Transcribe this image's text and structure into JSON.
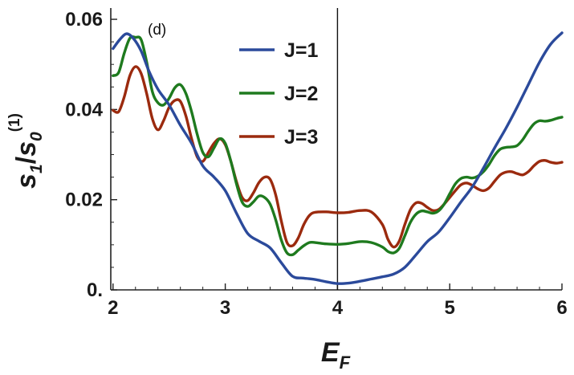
{
  "chart_data": {
    "type": "line",
    "panel_label": "(d)",
    "xlabel": {
      "main": "E",
      "sub": "F"
    },
    "ylabel": {
      "s1": "s",
      "s1_sub": "1",
      "slash": "/",
      "s0": "s",
      "s0_sub": "0",
      "s0_sup": "(1)"
    },
    "xlim": [
      1.98,
      6.0
    ],
    "ylim": [
      0.0,
      0.0625
    ],
    "x_ticks": [
      {
        "value": 2,
        "label": "2"
      },
      {
        "value": 3,
        "label": "3"
      },
      {
        "value": 4,
        "label": "4"
      },
      {
        "value": 5,
        "label": "5"
      },
      {
        "value": 6,
        "label": "6"
      }
    ],
    "y_ticks": [
      {
        "value": 0.0,
        "label": "0."
      },
      {
        "value": 0.02,
        "label": "0.02"
      },
      {
        "value": 0.04,
        "label": "0.04"
      },
      {
        "value": 0.06,
        "label": "0.06"
      }
    ],
    "reference_line_x": 4,
    "legend_position": "top-right",
    "series": [
      {
        "name": "J=1",
        "color": "#2b4a9b",
        "x": [
          2.0,
          2.06,
          2.12,
          2.18,
          2.25,
          2.32,
          2.4,
          2.5,
          2.6,
          2.7,
          2.8,
          2.9,
          3.0,
          3.1,
          3.2,
          3.3,
          3.4,
          3.5,
          3.6,
          3.7,
          3.8,
          3.9,
          4.0,
          4.1,
          4.2,
          4.3,
          4.4,
          4.5,
          4.6,
          4.7,
          4.8,
          4.9,
          5.0,
          5.1,
          5.2,
          5.3,
          5.4,
          5.5,
          5.6,
          5.7,
          5.8,
          5.9,
          6.0
        ],
        "y": [
          0.0535,
          0.0555,
          0.0568,
          0.0558,
          0.053,
          0.0485,
          0.0445,
          0.041,
          0.0365,
          0.0325,
          0.0275,
          0.025,
          0.022,
          0.017,
          0.0125,
          0.0108,
          0.0093,
          0.006,
          0.003,
          0.0026,
          0.0023,
          0.0018,
          0.0014,
          0.0015,
          0.0019,
          0.0024,
          0.0029,
          0.0035,
          0.005,
          0.0078,
          0.0107,
          0.0128,
          0.016,
          0.0195,
          0.0228,
          0.027,
          0.0315,
          0.0358,
          0.0405,
          0.0455,
          0.0505,
          0.0545,
          0.057
        ]
      },
      {
        "name": "J=2",
        "color": "#1e7a1e",
        "x": [
          2.0,
          2.05,
          2.1,
          2.15,
          2.2,
          2.25,
          2.3,
          2.35,
          2.4,
          2.45,
          2.5,
          2.55,
          2.6,
          2.65,
          2.7,
          2.75,
          2.8,
          2.85,
          2.9,
          2.95,
          3.0,
          3.05,
          3.1,
          3.15,
          3.2,
          3.25,
          3.3,
          3.35,
          3.4,
          3.45,
          3.5,
          3.55,
          3.6,
          3.65,
          3.7,
          3.75,
          3.8,
          3.9,
          4.0,
          4.1,
          4.2,
          4.3,
          4.4,
          4.45,
          4.5,
          4.55,
          4.6,
          4.65,
          4.7,
          4.75,
          4.8,
          4.85,
          4.9,
          4.95,
          5.0,
          5.05,
          5.1,
          5.15,
          5.2,
          5.25,
          5.3,
          5.35,
          5.4,
          5.45,
          5.5,
          5.55,
          5.6,
          5.65,
          5.7,
          5.75,
          5.8,
          5.85,
          5.9,
          5.95,
          6.0
        ],
        "y": [
          0.0475,
          0.0482,
          0.0525,
          0.0558,
          0.056,
          0.0555,
          0.0505,
          0.044,
          0.0415,
          0.041,
          0.0425,
          0.0448,
          0.0455,
          0.0435,
          0.0395,
          0.0345,
          0.0305,
          0.0295,
          0.0315,
          0.0335,
          0.0325,
          0.0285,
          0.0235,
          0.0195,
          0.0185,
          0.0195,
          0.0208,
          0.0205,
          0.019,
          0.0155,
          0.011,
          0.0082,
          0.0078,
          0.0088,
          0.0098,
          0.0105,
          0.0105,
          0.0102,
          0.0101,
          0.0103,
          0.0107,
          0.0105,
          0.0095,
          0.0085,
          0.0082,
          0.0092,
          0.012,
          0.015,
          0.0168,
          0.0175,
          0.0173,
          0.017,
          0.0175,
          0.019,
          0.0213,
          0.0235,
          0.0247,
          0.025,
          0.0248,
          0.0252,
          0.0262,
          0.0278,
          0.0298,
          0.0312,
          0.0316,
          0.0317,
          0.032,
          0.0333,
          0.0352,
          0.0368,
          0.0375,
          0.0374,
          0.0376,
          0.038,
          0.0383
        ]
      },
      {
        "name": "J=3",
        "color": "#9b2a0e",
        "x": [
          2.0,
          2.05,
          2.1,
          2.15,
          2.2,
          2.25,
          2.3,
          2.35,
          2.4,
          2.45,
          2.5,
          2.55,
          2.6,
          2.65,
          2.7,
          2.75,
          2.8,
          2.85,
          2.9,
          2.95,
          3.0,
          3.05,
          3.1,
          3.15,
          3.2,
          3.25,
          3.3,
          3.35,
          3.4,
          3.45,
          3.5,
          3.55,
          3.6,
          3.65,
          3.7,
          3.75,
          3.8,
          3.9,
          4.0,
          4.1,
          4.2,
          4.3,
          4.4,
          4.45,
          4.5,
          4.55,
          4.6,
          4.65,
          4.7,
          4.75,
          4.8,
          4.85,
          4.9,
          4.95,
          5.0,
          5.05,
          5.1,
          5.15,
          5.2,
          5.25,
          5.3,
          5.35,
          5.4,
          5.45,
          5.5,
          5.55,
          5.6,
          5.65,
          5.7,
          5.75,
          5.8,
          5.85,
          5.9,
          5.95,
          6.0
        ],
        "y": [
          0.0398,
          0.0395,
          0.0428,
          0.0475,
          0.0495,
          0.048,
          0.0435,
          0.038,
          0.0355,
          0.0375,
          0.0405,
          0.042,
          0.0418,
          0.0385,
          0.0335,
          0.0295,
          0.0285,
          0.0305,
          0.0325,
          0.0335,
          0.0322,
          0.0285,
          0.024,
          0.0205,
          0.0198,
          0.0215,
          0.0238,
          0.025,
          0.0245,
          0.021,
          0.0152,
          0.0105,
          0.0098,
          0.0115,
          0.0145,
          0.0165,
          0.0172,
          0.0173,
          0.0171,
          0.0172,
          0.0176,
          0.0173,
          0.0145,
          0.0112,
          0.0095,
          0.0108,
          0.0145,
          0.0178,
          0.0193,
          0.0192,
          0.0183,
          0.0176,
          0.0178,
          0.019,
          0.0205,
          0.022,
          0.0233,
          0.0237,
          0.0232,
          0.0224,
          0.022,
          0.0226,
          0.0241,
          0.0255,
          0.0261,
          0.0262,
          0.0258,
          0.0255,
          0.0262,
          0.0275,
          0.0285,
          0.0287,
          0.0283,
          0.0281,
          0.0283
        ]
      }
    ]
  }
}
